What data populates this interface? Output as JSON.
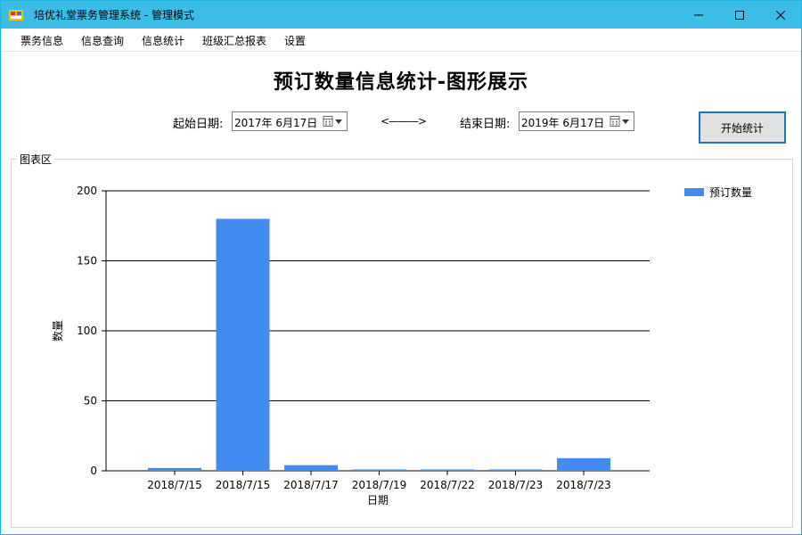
{
  "window": {
    "title": "培优礼堂票务管理系统 - 管理模式"
  },
  "menu": [
    "票务信息",
    "信息查询",
    "信息统计",
    "班级汇总报表",
    "设置"
  ],
  "page": {
    "title": "预订数量信息统计-图形展示",
    "start_label": "起始日期:",
    "start_value": "2017年  6月17日",
    "separator": "<———>",
    "end_label": "结束日期:",
    "end_value": "2019年  6月17日",
    "button_label": "开始统计",
    "group_label": "图表区"
  },
  "colors": {
    "titlebar": "#3cbde8",
    "bar": "#418cf0"
  },
  "chart_data": {
    "type": "bar",
    "categories": [
      "2018/7/15",
      "2018/7/15",
      "2018/7/17",
      "2018/7/19",
      "2018/7/22",
      "2018/7/23",
      "2018/7/23"
    ],
    "series": [
      {
        "name": "预订数量",
        "values": [
          2,
          180,
          4,
          1,
          1,
          1,
          9
        ]
      }
    ],
    "xlabel": "日期",
    "ylabel": "数量",
    "ylim": [
      0,
      200
    ],
    "yticks": [
      0,
      50,
      100,
      150,
      200
    ],
    "grid": true,
    "legend": "top-right"
  }
}
